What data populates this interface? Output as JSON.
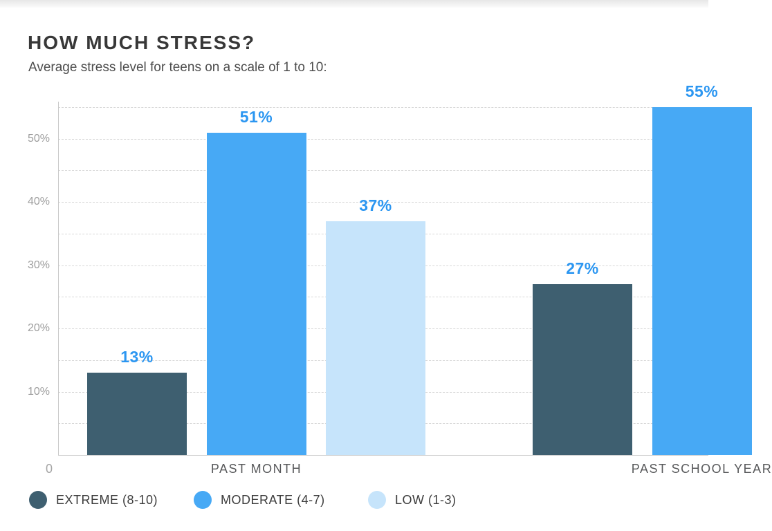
{
  "header": {
    "title": "HOW MUCH STRESS?",
    "subtitle": "Average stress level for teens on a scale of 1 to 10:"
  },
  "chart_data": {
    "type": "bar",
    "title": "HOW MUCH STRESS?",
    "subtitle": "Average stress level for teens on a scale of 1 to 10:",
    "categories": [
      "PAST MONTH",
      "PAST SCHOOL YEAR"
    ],
    "series": [
      {
        "name": "EXTREME (8-10)",
        "color": "#3e5f70",
        "values": [
          13,
          27
        ]
      },
      {
        "name": "MODERATE (4-7)",
        "color": "#47a9f5",
        "values": [
          51,
          55
        ]
      },
      {
        "name": "LOW (1-3)",
        "color": "#c6e4fb",
        "values": [
          37,
          null
        ]
      }
    ],
    "value_label_format": "{v}%",
    "value_label_color": "#2b96f1",
    "y_axis": {
      "tick_labels": [
        "10%",
        "20%",
        "30%",
        "40%",
        "50%"
      ],
      "tick_values": [
        10,
        20,
        30,
        40,
        50
      ],
      "gridline_step": 5,
      "min": 0,
      "max": 55,
      "origin_label": "0"
    },
    "grid": "dashed-horizontal",
    "legend_position": "bottom-left",
    "colors": {
      "grid": "#d7d7d7",
      "axis": "#c9c9c9",
      "axis_text": "#9e9e9e",
      "category_text": "#58595b",
      "title_text": "#383838",
      "subtitle_text": "#4d4d4d"
    }
  }
}
